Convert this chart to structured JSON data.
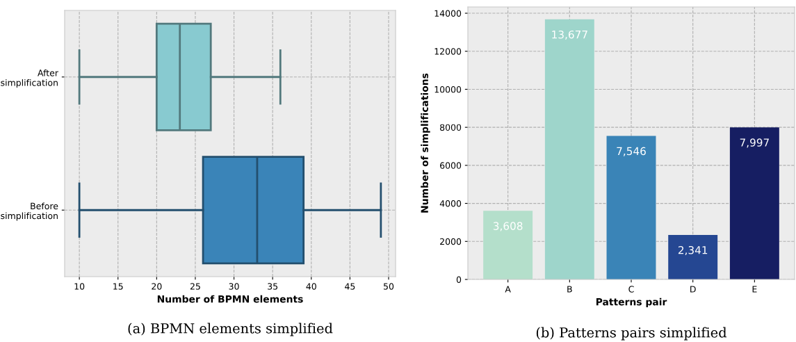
{
  "chart_data": [
    {
      "type": "box",
      "orientation": "horizontal",
      "categories": [
        "After\nsimplification",
        "Before\nsimplification"
      ],
      "boxes": [
        {
          "low": 10,
          "q1": 20,
          "median": 23,
          "q3": 27,
          "high": 36
        },
        {
          "low": 10,
          "q1": 26,
          "median": 33,
          "q3": 39,
          "high": 49
        }
      ],
      "colors": [
        "#88cad0",
        "#3a84b8"
      ],
      "xlabel": "Number of BPMN elements",
      "xlim": [
        8.1,
        50.9
      ],
      "xticks": [
        10,
        15,
        20,
        25,
        30,
        35,
        40,
        45,
        50
      ],
      "grid": true,
      "annotations": [
        "(a) BPMN elements simplified"
      ]
    },
    {
      "type": "bar",
      "categories": [
        "A",
        "B",
        "C",
        "D",
        "E"
      ],
      "values": [
        3608,
        13677,
        7546,
        2341,
        7997
      ],
      "colors": [
        "#b4dfcb",
        "#9ed5cb",
        "#3a84b7",
        "#254792",
        "#161e62"
      ],
      "value_labels": [
        "3,608",
        "13,677",
        "7,546",
        "2,341",
        "7,997"
      ],
      "xlabel": "Patterns pair",
      "ylabel": "Number of simplifications",
      "ylim": [
        0,
        14330
      ],
      "yticks": [
        0,
        2000,
        4000,
        6000,
        8000,
        10000,
        12000,
        14000
      ],
      "grid": true,
      "annotations": [
        "(b) Patterns pairs simplified"
      ]
    }
  ]
}
